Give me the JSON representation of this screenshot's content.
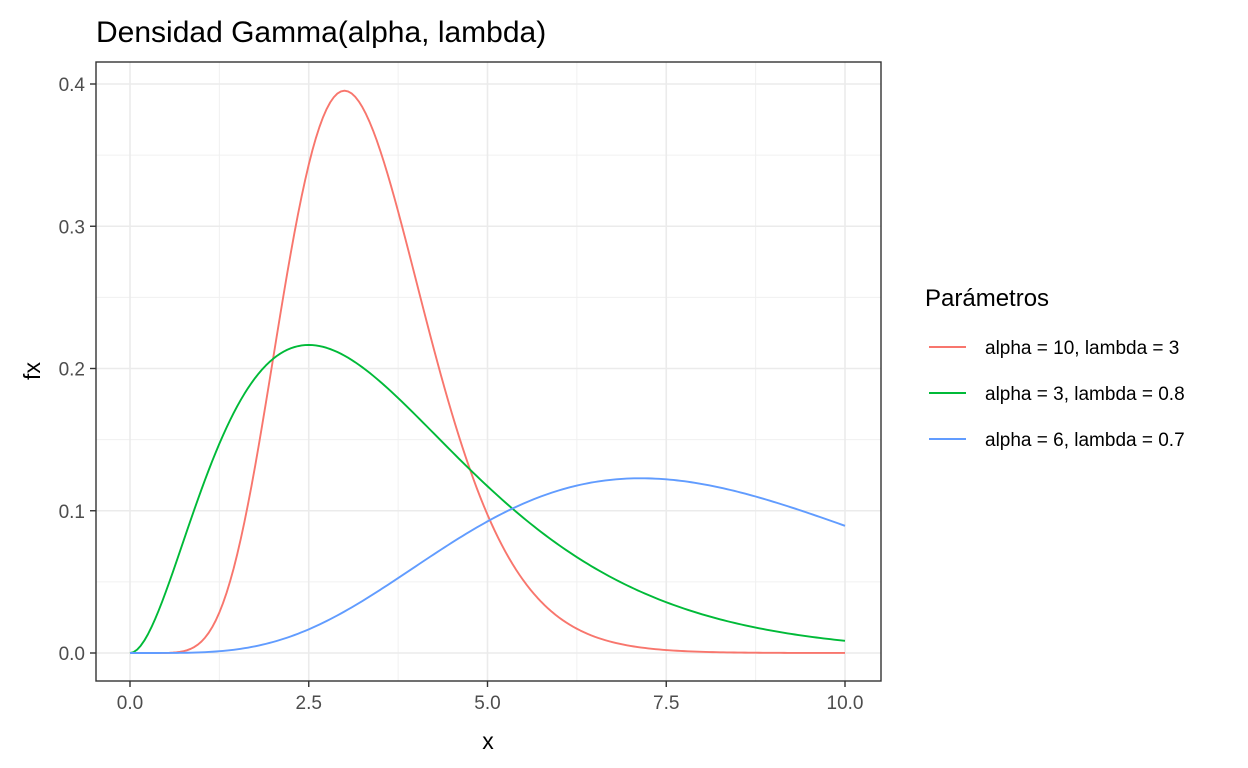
{
  "chart_data": {
    "type": "line",
    "title": "Densidad Gamma(alpha, lambda)",
    "xlabel": "x",
    "ylabel": "fx",
    "xlim": [
      -0.5,
      10.5
    ],
    "ylim": [
      -0.02,
      0.415
    ],
    "x_ticks": [
      0,
      2.5,
      5,
      7.5,
      10
    ],
    "x_tick_labels": [
      "0.0",
      "2.5",
      "5.0",
      "7.5",
      "10.0"
    ],
    "y_ticks": [
      0,
      0.1,
      0.2,
      0.3,
      0.4
    ],
    "y_tick_labels": [
      "0.0",
      "0.1",
      "0.2",
      "0.3",
      "0.4"
    ],
    "grid": true,
    "legend_position": "right",
    "legend_title": "Parámetros",
    "x": [
      0,
      1,
      2,
      2.5,
      3,
      4,
      5,
      6,
      7,
      7.5,
      8,
      9,
      10
    ],
    "series": [
      {
        "name": "alpha = 10, lambda = 3",
        "color": "#F8766D",
        "alpha": 10,
        "lambda": 3,
        "values": [
          0,
          0.011,
          0.207,
          0.348,
          0.394,
          0.212,
          0.0645,
          0.0138,
          0.0023,
          0.0009,
          0.0003,
          3e-05,
          3e-06
        ]
      },
      {
        "name": "alpha = 3, lambda = 0.8",
        "color": "#00BA38",
        "alpha": 3,
        "lambda": 0.8,
        "values": [
          0,
          0.115,
          0.207,
          0.217,
          0.209,
          0.166,
          0.117,
          0.076,
          0.047,
          0.036,
          0.028,
          0.016,
          0.0086
        ]
      },
      {
        "name": "alpha = 6, lambda = 0.7",
        "color": "#619CFF",
        "alpha": 6,
        "lambda": 0.7,
        "values": [
          0,
          0.0007,
          0.0086,
          0.0167,
          0.0276,
          0.0558,
          0.0847,
          0.1065,
          0.1184,
          0.1202,
          0.12,
          0.1069,
          0.0893
        ]
      }
    ]
  },
  "plot": {
    "title": "Densidad Gamma(alpha, lambda)",
    "xlabel": "x",
    "ylabel": "fx"
  },
  "legend": {
    "title": "Parámetros",
    "items": [
      {
        "label": "alpha = 10, lambda = 3",
        "color": "#F8766D"
      },
      {
        "label": "alpha = 3, lambda = 0.8",
        "color": "#00BA38"
      },
      {
        "label": "alpha = 6, lambda = 0.7",
        "color": "#619CFF"
      }
    ]
  }
}
